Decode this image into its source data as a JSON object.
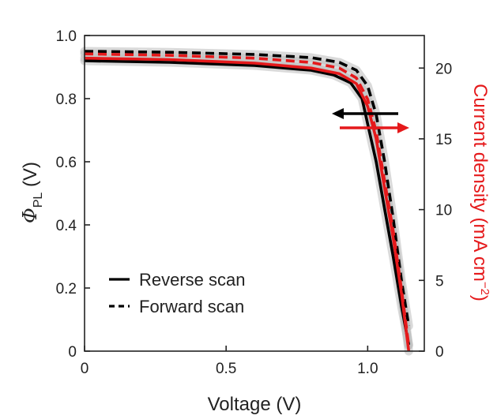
{
  "chart_data": {
    "type": "line",
    "title": "",
    "xlabel": "Voltage (V)",
    "ylabel_left": {
      "symbol": "Φ",
      "subscript": "PL",
      "unit": "(V)"
    },
    "ylabel_right": {
      "text": "Current density (mA cm",
      "superscript": "−2",
      "suffix": ")"
    },
    "xlim": [
      0,
      1.2
    ],
    "ylim_left": [
      0,
      1.0
    ],
    "ylim_right": [
      0,
      22.3
    ],
    "x_ticks": [
      {
        "value": 0,
        "label": "0"
      },
      {
        "value": 0.5,
        "label": "0.5"
      },
      {
        "value": 1.0,
        "label": "1.0"
      }
    ],
    "y_ticks_left": [
      {
        "value": 0,
        "label": "0"
      },
      {
        "value": 0.2,
        "label": "0.2"
      },
      {
        "value": 0.4,
        "label": "0.4"
      },
      {
        "value": 0.6,
        "label": "0.6"
      },
      {
        "value": 0.8,
        "label": "0.8"
      },
      {
        "value": 1.0,
        "label": "1.0"
      }
    ],
    "y_ticks_right": [
      {
        "value": 0,
        "label": "0"
      },
      {
        "value": 5,
        "label": "5"
      },
      {
        "value": 10,
        "label": "10"
      },
      {
        "value": 15,
        "label": "15"
      },
      {
        "value": 20,
        "label": "20"
      }
    ],
    "legend": {
      "position": "lower-left",
      "entries": [
        {
          "label": "Reverse scan",
          "style": "solid"
        },
        {
          "label": "Forward scan",
          "style": "dashed"
        }
      ]
    },
    "annotations": [
      {
        "type": "arrow",
        "direction": "left",
        "color": "#000000"
      },
      {
        "type": "arrow",
        "direction": "right",
        "color": "#e5191b"
      }
    ],
    "colors": {
      "phi_pl": "#000000",
      "current_density": "#e5191b",
      "band": "#bbbbbb"
    },
    "series": [
      {
        "axis": "left",
        "style": "solid",
        "color": "#000000",
        "points": [
          [
            0,
            0.92
          ],
          [
            0.3,
            0.915
          ],
          [
            0.6,
            0.905
          ],
          [
            0.8,
            0.89
          ],
          [
            0.88,
            0.875
          ],
          [
            0.94,
            0.85
          ],
          [
            0.98,
            0.8
          ],
          [
            1.0,
            0.72
          ],
          [
            1.03,
            0.6
          ],
          [
            1.06,
            0.45
          ],
          [
            1.09,
            0.3
          ],
          [
            1.12,
            0.14
          ],
          [
            1.145,
            0.02
          ]
        ]
      },
      {
        "axis": "left",
        "style": "dashed",
        "color": "#000000",
        "points": [
          [
            0,
            0.95
          ],
          [
            0.3,
            0.947
          ],
          [
            0.6,
            0.94
          ],
          [
            0.8,
            0.93
          ],
          [
            0.9,
            0.915
          ],
          [
            0.96,
            0.89
          ],
          [
            1.0,
            0.84
          ],
          [
            1.03,
            0.75
          ],
          [
            1.06,
            0.6
          ],
          [
            1.09,
            0.42
          ],
          [
            1.12,
            0.22
          ],
          [
            1.145,
            0.08
          ]
        ]
      },
      {
        "axis": "right",
        "style": "solid",
        "color": "#e5191b",
        "points": [
          [
            0,
            20.7
          ],
          [
            0.3,
            20.6
          ],
          [
            0.6,
            20.35
          ],
          [
            0.8,
            20.0
          ],
          [
            0.9,
            19.6
          ],
          [
            0.96,
            18.9
          ],
          [
            1.0,
            17.3
          ],
          [
            1.03,
            15.0
          ],
          [
            1.06,
            11.5
          ],
          [
            1.09,
            8.0
          ],
          [
            1.12,
            4.0
          ],
          [
            1.145,
            0.0
          ]
        ]
      },
      {
        "axis": "right",
        "style": "dashed",
        "color": "#e5191b",
        "points": [
          [
            0,
            21.0
          ],
          [
            0.3,
            20.9
          ],
          [
            0.6,
            20.7
          ],
          [
            0.8,
            20.4
          ],
          [
            0.9,
            20.0
          ],
          [
            0.96,
            19.3
          ],
          [
            1.0,
            17.8
          ],
          [
            1.03,
            15.5
          ],
          [
            1.06,
            12.0
          ],
          [
            1.09,
            8.5
          ],
          [
            1.12,
            4.3
          ],
          [
            1.145,
            0.4
          ]
        ]
      }
    ]
  }
}
